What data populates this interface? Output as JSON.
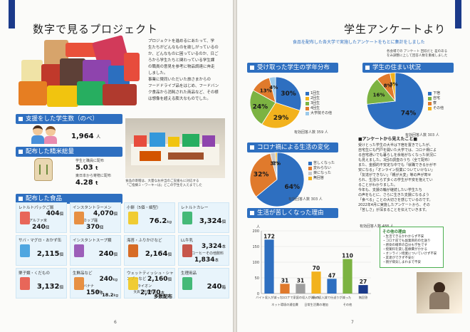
{
  "left": {
    "title": "数字で見るプロジェクト",
    "intro": [
      "プロジェクトを進めるにあたって、学",
      "生たちがどんなものを欲しがっているの",
      "か、どんなものに困っているのか、日ご",
      "ろから学生たちと関わっている学生課",
      "の職員の意見を参考に物品調達に奔走",
      "しました。",
      "事業に賛同いただいた旅さまからの",
      "フードドライブ品をはじめ、フードバン",
      "ク食品から消耗された商品など、その様",
      "は想像を超える膨大なものでした。"
    ],
    "supported": {
      "header": "支援をした学生数（のべ）",
      "value": "1,964",
      "unit": "人"
    },
    "rice": {
      "header": "配布した精米総量",
      "line1": "学生と職員に配布",
      "value1": "5.03",
      "unit1": "t",
      "line2": "東日本から寄贈に配布",
      "value2": "4.28",
      "unit2": "t"
    },
    "photo_caption": [
      "食品の寄贈は、大量なお弁当のご支援もに対応する",
      "「ご指摘ミ・ワーキーは」どこの学生を入えまでした"
    ],
    "food": {
      "header": "配布した食品",
      "cells": [
        {
          "label": "レトルトパックご飯",
          "value": "404",
          "unit": "個",
          "sub": "アルファ米",
          "value2": "240",
          "unit2": "個"
        },
        {
          "label": "インスタントラーメン",
          "value": "4,070",
          "unit": "個",
          "sub": "カップ麺",
          "value2": "370",
          "unit2": "個"
        },
        {
          "label": "小餅（5個・細型）",
          "value": "76.2",
          "unit": "kg"
        },
        {
          "label": "レトルトカレー",
          "value": "3,324",
          "unit": "個"
        },
        {
          "label": "サバ・マグロ・おかず缶",
          "value": "2,115",
          "unit": "個"
        },
        {
          "label": "インスタントスープ類",
          "value": "240",
          "unit": "個"
        },
        {
          "label": "海苔・ふりかけなど",
          "value": "2,164",
          "unit": "個"
        },
        {
          "label": "LL牛乳",
          "value": "3,324",
          "unit": "本",
          "sub": "コーヒーその他飲料",
          "value2": "1,834",
          "unit2": "本"
        },
        {
          "label": "栗子類・くだもの",
          "value": "3,132",
          "unit": "個"
        },
        {
          "label": "生鮮品など",
          "value": "240",
          "unit": "kg",
          "sub": "バナナ",
          "value2": "150",
          "unit2": "本",
          "sub3": "他の",
          "value3": "18.2",
          "unit3": "kg"
        },
        {
          "label": "ウェットティッシュ・シャンプーなど",
          "value": "2,160",
          "unit": "個",
          "sub": "ライオン",
          "value2": "2,170",
          "unit2": "本",
          "sub3": "文具・学習用品",
          "value3": "多数配布"
        },
        {
          "label": "生理用品",
          "value": "240",
          "unit": "箱"
        }
      ]
    },
    "page_number": "6"
  },
  "right": {
    "title": "学生アンケートより",
    "subtitle": "食品を配布した各大学で実施したアンケートをもとに集計をしました",
    "note_right": [
      "各会場での アンケート 回収だと 差のある",
      "をみ調整に上して回答人数を重複しました"
    ],
    "grade": {
      "header": "受け取った学生の学年分布",
      "legend": [
        "1回生",
        "2回生",
        "3回生",
        "4回生",
        "大学院その他"
      ],
      "count": "有効回答人数 359 人"
    },
    "residence": {
      "header": "学生の住まい状況",
      "legend": [
        "下宿",
        "自宅",
        "寮",
        "その他"
      ],
      "count": "有効回答人数 303 人"
    },
    "covid": {
      "header": "コロナ禍による生活の変化",
      "legend": [
        "苦しくなった",
        "変わらない",
        "楽になった",
        "無回答"
      ],
      "count": "有効回答人数 303 人"
    },
    "notes": {
      "heading": "■アンケートから見えたこと■",
      "lines": [
        "受けとった学生の大半は下宿を置きでしたが、",
        "自宅生にも門戸を開いた大学では、コロナ禍によ",
        "る自宅通いでも暮らしを余裕がなくなった状況に",
        "も見えました。3回の調査のうち（全て配布）",
        "また、金額的不安定な中でも「就職できるかが不",
        "安になる」「オンライン授業についていけない」",
        "「友達ができない」「親が大変」等の声が寄せ",
        "られ、生活ならず多くの学生が不安を抱えてい",
        "ることがわかりました。",
        "今年も、支援の輪が継続したい学生たち",
        "の声をもとに、さらに生きた支援になるよう",
        "「食べる」ことの大切さを感じているのです。",
        "2022年4月に実施したアンケートから、その",
        "「苦しさ」が深まることを伝えていきます。"
      ]
    },
    "reasons": {
      "header": "生活が苦しくなった理由",
      "y_unit": "人",
      "count": "有効回答人数 488 人",
      "callout_title": "その他の理由",
      "callout_lines": [
        "・生活できるかわからず不安",
        "・コロナ前でも副業目的の仕送り",
        "・感染の確率の自分も学生です",
        "・授業料を貸し医療費がかかる",
        "・オンライン授業についていけず不安",
        "・友達ができず不安だ",
        "・親が病気しまわまで不安"
      ]
    },
    "page_number": "7"
  },
  "chart_data": [
    {
      "type": "pie",
      "title": "受け取った学生の学年分布",
      "categories": [
        "1回生",
        "2回生",
        "3回生",
        "4回生",
        "大学院その他"
      ],
      "values": [
        30,
        29,
        24,
        13,
        4
      ],
      "colors": [
        "#2e6fc0",
        "#f2b21d",
        "#7cb342",
        "#e07a2c",
        "#9ccaea"
      ]
    },
    {
      "type": "pie",
      "title": "学生の住まい状況",
      "categories": [
        "下宿",
        "自宅",
        "寮",
        "その他"
      ],
      "values": [
        74,
        16,
        8,
        3
      ],
      "colors": [
        "#2e6fc0",
        "#7cb342",
        "#e07a2c",
        "#f2b21d"
      ]
    },
    {
      "type": "pie",
      "title": "コロナ禍による生活の変化",
      "categories": [
        "苦しくなった",
        "変わらない",
        "楽になった",
        "無回答"
      ],
      "values": [
        64,
        32,
        3,
        1
      ],
      "colors": [
        "#2e6fc0",
        "#e07a2c",
        "#c8c8c8",
        "#f2b21d"
      ]
    },
    {
      "type": "bar",
      "title": "生活が苦しくなった理由",
      "categories": [
        "バイト収入が減った",
        "ネット環境の通信費",
        "コロナで家庭の収入が減った",
        "日常生活費の増加",
        "親の収入減で仕送りが減った",
        "その他",
        "無回答"
      ],
      "values": [
        172,
        31,
        31,
        70,
        47,
        110,
        27
      ],
      "colors": [
        "#2e6fc0",
        "#e07a2c",
        "#9e9e9e",
        "#f2b21d",
        "#2e6fc0",
        "#7cb342",
        "#1b3a8a"
      ],
      "ylim": [
        0,
        200
      ],
      "yticks": [
        0,
        50,
        100,
        150,
        200
      ],
      "ylabel": "人"
    }
  ]
}
